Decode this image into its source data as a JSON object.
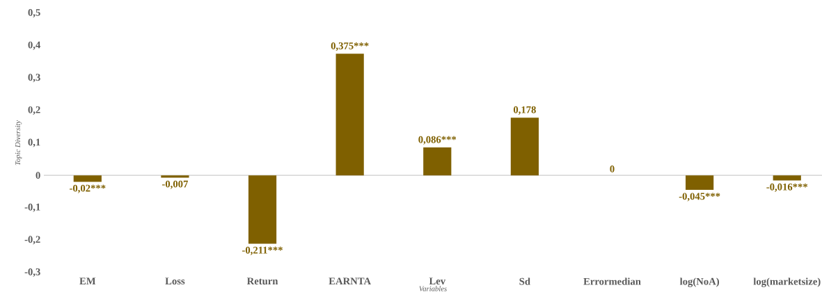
{
  "chart_data": {
    "type": "bar",
    "categories": [
      "EM",
      "Loss",
      "Return",
      "EARNTA",
      "Lev",
      "Sd",
      "Errormedian",
      "log(NoA)",
      "log(marketsize)"
    ],
    "values": [
      -0.02,
      -0.007,
      -0.211,
      0.375,
      0.086,
      0.178,
      0,
      -0.045,
      -0.016
    ],
    "value_labels": [
      "-0,02***",
      "-0,007",
      "-0,211***",
      "0,375***",
      "0,086***",
      "0,178",
      "0",
      "-0,045***",
      "-0,016***"
    ],
    "color": "#7f6000",
    "xlabel": "Variables",
    "ylabel": "Topic Diversity",
    "ylim": [
      -0.3,
      0.5
    ],
    "yticks": [
      {
        "value": -0.3,
        "label": "-0,3"
      },
      {
        "value": -0.2,
        "label": "-0,2"
      },
      {
        "value": -0.1,
        "label": "-0,1"
      },
      0,
      {
        "value": 0.1,
        "label": "0,1"
      },
      {
        "value": 0.2,
        "label": "0,2"
      },
      {
        "value": 0.3,
        "label": "0,3"
      },
      {
        "value": 0.4,
        "label": "0,4"
      },
      {
        "value": 0.5,
        "label": "0,5"
      }
    ]
  }
}
